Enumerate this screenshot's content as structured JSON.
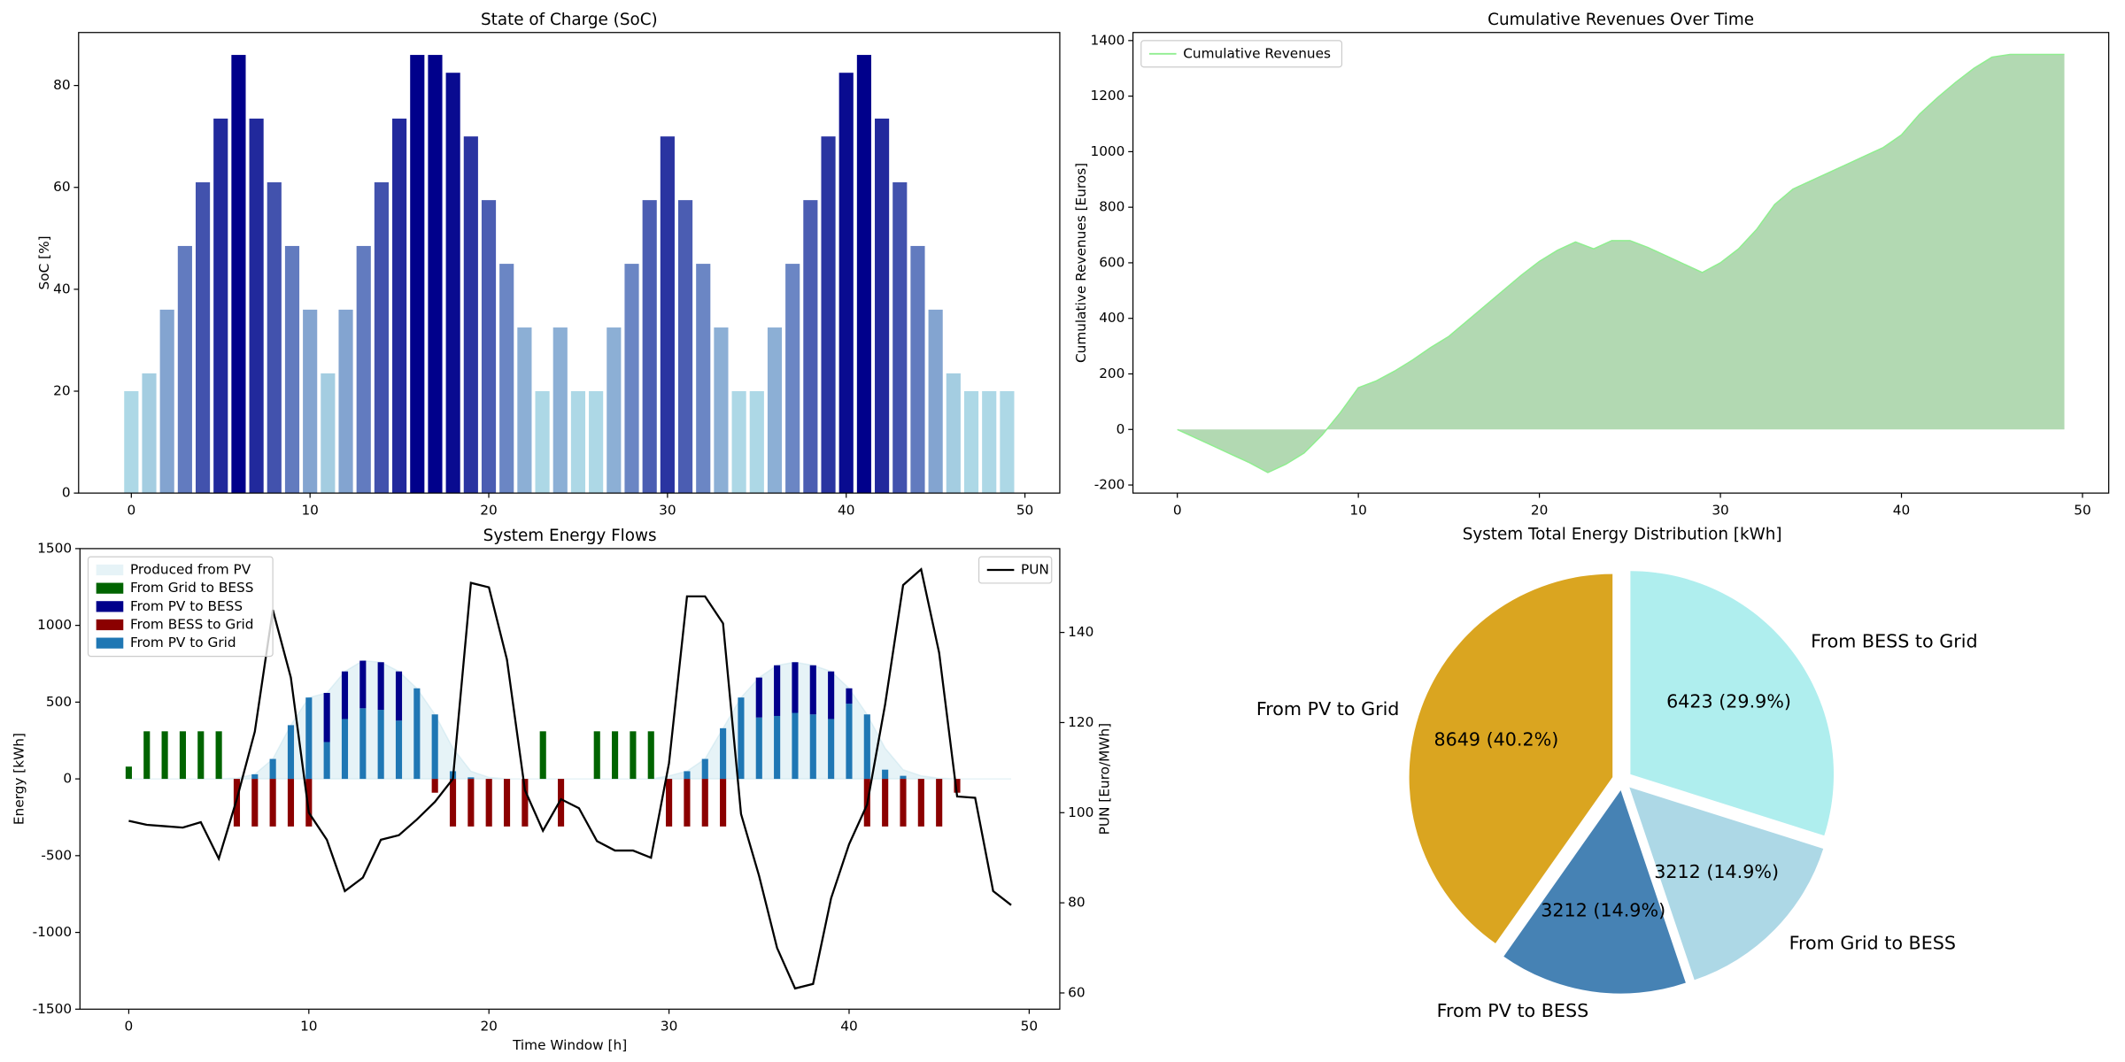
{
  "chart_data": [
    {
      "type": "bar",
      "title": "State of Charge (SoC)",
      "ylabel": "SoC [%]",
      "x": [
        0,
        1,
        2,
        3,
        4,
        5,
        6,
        7,
        8,
        9,
        10,
        11,
        12,
        13,
        14,
        15,
        16,
        17,
        18,
        19,
        20,
        21,
        22,
        23,
        24,
        25,
        26,
        27,
        28,
        29,
        30,
        31,
        32,
        33,
        34,
        35,
        36,
        37,
        38,
        39,
        40,
        41,
        42,
        43,
        44,
        45,
        46,
        47,
        48,
        49
      ],
      "values": [
        20,
        23.5,
        36,
        48.5,
        61,
        73.5,
        86,
        73.5,
        61,
        48.5,
        36,
        23.5,
        36,
        48.5,
        61,
        73.5,
        86,
        86,
        82.5,
        70,
        57.5,
        45,
        32.5,
        20,
        32.5,
        20,
        20,
        32.5,
        45,
        57.5,
        70,
        57.5,
        45,
        32.5,
        20,
        20,
        32.5,
        45,
        57.5,
        70,
        82.5,
        86,
        73.5,
        61,
        48.5,
        36,
        23.5,
        20,
        20,
        20
      ],
      "color_scale": [
        "#add8e6",
        "#00008b"
      ],
      "xlim": [
        -2.95,
        51.95
      ],
      "ylim": [
        0,
        90.4
      ],
      "xticks": [
        0,
        10,
        20,
        30,
        40,
        50
      ],
      "yticks": [
        0,
        20,
        40,
        60,
        80
      ]
    },
    {
      "type": "area",
      "title": "Cumulative Revenues Over Time",
      "ylabel": "Cumulative Revenues [Euros]",
      "x": [
        0,
        1,
        2,
        3,
        4,
        5,
        6,
        7,
        8,
        9,
        10,
        11,
        12,
        13,
        14,
        15,
        16,
        17,
        18,
        19,
        20,
        21,
        22,
        23,
        24,
        25,
        26,
        27,
        28,
        29,
        30,
        31,
        32,
        33,
        34,
        35,
        36,
        37,
        38,
        39,
        40,
        41,
        42,
        43,
        44,
        45,
        46,
        47,
        48,
        49
      ],
      "series": [
        {
          "name": "Cumulative Revenues",
          "color": "#90ee90",
          "fill_color": "#008000",
          "alpha": 0.3,
          "values": [
            0,
            -30,
            -60,
            -90,
            -120,
            -155,
            -125,
            -85,
            -20,
            60,
            150,
            175,
            210,
            250,
            295,
            335,
            390,
            445,
            500,
            555,
            605,
            645,
            675,
            650,
            680,
            680,
            655,
            625,
            595,
            565,
            600,
            650,
            720,
            810,
            865,
            895,
            925,
            955,
            985,
            1015,
            1060,
            1135,
            1195,
            1250,
            1300,
            1340,
            1350,
            1350,
            1350,
            1350
          ]
        }
      ],
      "legend": "upper left",
      "xlim": [
        -2.45,
        51.45
      ],
      "ylim": [
        -229,
        1429
      ],
      "xticks": [
        0,
        10,
        20,
        30,
        40,
        50
      ],
      "yticks": [
        -200,
        0,
        200,
        400,
        600,
        800,
        1000,
        1200,
        1400
      ]
    },
    {
      "type": "combo",
      "title": "System Energy Flows",
      "xlabel": "Time Window [h]",
      "ylabel": "Energy [kWh]",
      "y2label": "PUN [Euro/MWh]",
      "x": [
        0,
        1,
        2,
        3,
        4,
        5,
        6,
        7,
        8,
        9,
        10,
        11,
        12,
        13,
        14,
        15,
        16,
        17,
        18,
        19,
        20,
        21,
        22,
        23,
        24,
        25,
        26,
        27,
        28,
        29,
        30,
        31,
        32,
        33,
        34,
        35,
        36,
        37,
        38,
        39,
        40,
        41,
        42,
        43,
        44,
        45,
        46,
        47,
        48,
        49
      ],
      "series": [
        {
          "name": "Produced from PV",
          "kind": "area",
          "color": "#add8e6",
          "alpha": 0.3,
          "values": [
            0,
            0,
            0,
            0,
            0,
            0,
            5,
            30,
            130,
            350,
            530,
            560,
            700,
            770,
            760,
            700,
            590,
            420,
            200,
            50,
            10,
            0,
            0,
            0,
            0,
            0,
            0,
            0,
            0,
            0,
            20,
            50,
            130,
            330,
            530,
            660,
            740,
            760,
            740,
            700,
            590,
            420,
            200,
            60,
            20,
            5,
            0,
            0,
            0,
            0
          ]
        },
        {
          "name": "From Grid to BESS",
          "kind": "bar",
          "color": "#006400",
          "values": [
            80,
            310,
            310,
            310,
            310,
            310,
            0,
            0,
            0,
            0,
            0,
            0,
            0,
            0,
            0,
            0,
            0,
            0,
            0,
            0,
            0,
            0,
            0,
            310,
            0,
            0,
            310,
            310,
            310,
            310,
            0,
            0,
            0,
            0,
            0,
            0,
            0,
            0,
            0,
            0,
            0,
            0,
            0,
            0,
            0,
            0,
            0,
            0,
            0,
            0
          ]
        },
        {
          "name": "From PV to BESS",
          "kind": "bar",
          "color": "#00008b",
          "values": [
            0,
            0,
            0,
            0,
            0,
            0,
            0,
            0,
            0,
            0,
            0,
            320,
            310,
            310,
            310,
            320,
            0,
            0,
            0,
            0,
            0,
            0,
            0,
            0,
            0,
            0,
            0,
            0,
            0,
            0,
            0,
            0,
            0,
            0,
            0,
            260,
            330,
            330,
            320,
            310,
            100,
            0,
            0,
            0,
            0,
            0,
            0,
            0,
            0,
            0
          ]
        },
        {
          "name": "From BESS to Grid",
          "kind": "bar",
          "color": "#8b0000",
          "values": [
            0,
            0,
            0,
            0,
            0,
            0,
            -310,
            -310,
            -310,
            -310,
            -310,
            0,
            0,
            0,
            0,
            0,
            0,
            -90,
            -310,
            -310,
            -310,
            -310,
            -310,
            0,
            -310,
            0,
            0,
            0,
            0,
            0,
            -310,
            -310,
            -310,
            -310,
            0,
            0,
            0,
            0,
            0,
            0,
            0,
            -310,
            -310,
            -310,
            -310,
            -310,
            -90,
            0,
            0,
            0
          ]
        },
        {
          "name": "From PV to Grid",
          "kind": "bar",
          "color": "#1f77b4",
          "values": [
            0,
            0,
            0,
            0,
            0,
            0,
            0,
            30,
            130,
            350,
            530,
            240,
            390,
            460,
            450,
            380,
            590,
            420,
            50,
            10,
            0,
            0,
            0,
            0,
            0,
            0,
            0,
            0,
            0,
            0,
            0,
            50,
            130,
            330,
            530,
            400,
            410,
            430,
            420,
            390,
            490,
            420,
            60,
            20,
            0,
            0,
            0,
            0,
            0,
            0
          ]
        },
        {
          "name": "PUN",
          "kind": "line",
          "axis": "y2",
          "color": "#000000",
          "values": [
            98.2,
            97.3,
            97,
            96.7,
            97.9,
            89.8,
            103,
            118,
            145,
            130,
            100,
            94,
            82.6,
            85.6,
            94,
            95,
            98.5,
            102.4,
            107.5,
            151,
            150,
            134,
            105,
            96,
            103,
            101,
            93.7,
            91.6,
            91.6,
            90,
            111,
            148,
            148,
            142,
            99.7,
            86,
            70,
            61,
            62,
            81,
            93,
            101.8,
            124,
            150.5,
            154,
            135.5,
            103.6,
            103.3,
            82.6,
            79.5
          ]
        }
      ],
      "legend": "upper left",
      "legend2": "upper right",
      "xlim": [
        -2.71,
        51.7
      ],
      "ylim": [
        -1500,
        1500
      ],
      "xticks": [
        0,
        10,
        20,
        30,
        40,
        50
      ],
      "yticks": [
        -1500,
        -1000,
        -500,
        0,
        500,
        1000,
        1500
      ],
      "y2lim": [
        56.4,
        158.6
      ],
      "y2ticks": [
        60,
        80,
        100,
        120,
        140
      ]
    },
    {
      "type": "pie",
      "title": "System Total Energy Distribution [kWh]",
      "labels": [
        "From PV to Grid",
        "From PV to BESS",
        "From Grid to BESS",
        "From BESS to Grid"
      ],
      "values": [
        8649,
        3212,
        3212,
        6423
      ],
      "value_labels": [
        "8649 (40.2%)",
        "3212 (14.9%)",
        "3212 (14.9%)",
        "6423 (29.9%)"
      ],
      "colors": [
        "#daa520",
        "#4682b4",
        "#add8e6",
        "#afeeee"
      ],
      "explode": [
        0.05,
        0.05,
        0.05,
        0.05
      ],
      "startangle": 90
    }
  ]
}
